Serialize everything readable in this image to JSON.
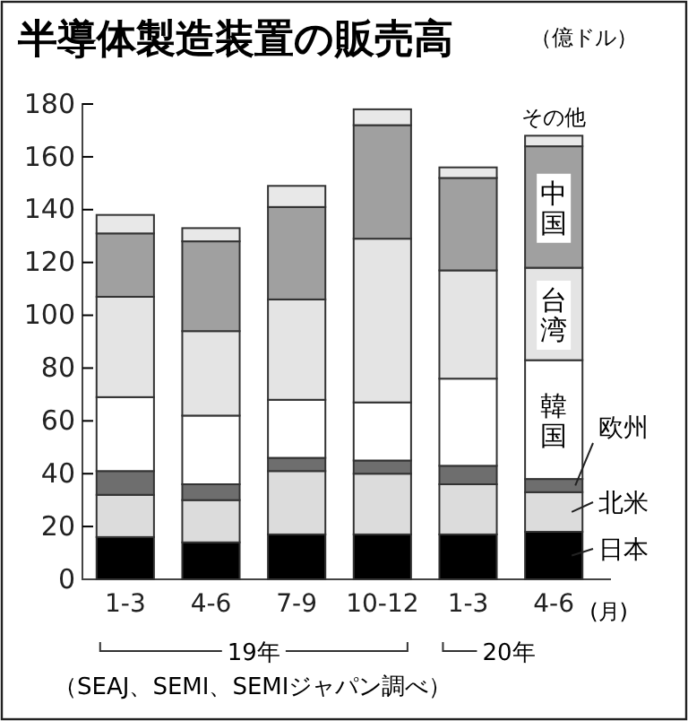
{
  "chart_data": {
    "type": "bar",
    "title": "半導体製造装置の販売高",
    "ylabel": "（億ドル）",
    "categories": [
      "1-3",
      "4-6",
      "7-9",
      "10-12",
      "1-3",
      "4-6"
    ],
    "stacked": true,
    "ylim": [
      0,
      180
    ],
    "yticks": [
      0,
      20,
      40,
      60,
      80,
      100,
      120,
      140,
      160,
      180
    ],
    "grid": false,
    "series": [
      {
        "name": "日本",
        "color": "#000000",
        "values": [
          16,
          14,
          17,
          17,
          17,
          18
        ]
      },
      {
        "name": "北米",
        "color": "#dcdcdc",
        "values": [
          16,
          16,
          24,
          23,
          19,
          15
        ]
      },
      {
        "name": "欧州",
        "color": "#6e6e6e",
        "values": [
          9,
          6,
          5,
          5,
          7,
          5
        ]
      },
      {
        "name": "韓国",
        "color": "#ffffff",
        "values": [
          28,
          26,
          22,
          22,
          33,
          45
        ]
      },
      {
        "name": "台湾",
        "color": "#e4e4e4",
        "values": [
          38,
          32,
          38,
          62,
          41,
          35
        ]
      },
      {
        "name": "中国",
        "color": "#a0a0a0",
        "values": [
          24,
          34,
          35,
          43,
          35,
          46
        ]
      },
      {
        "name": "その他",
        "color": "#e8e8e8",
        "values": [
          7,
          5,
          8,
          6,
          4,
          4
        ]
      }
    ],
    "annotations": [
      "(月)",
      "19年",
      "20年",
      "（SEAJ、SEMI、SEMIジャパン調べ）"
    ]
  }
}
